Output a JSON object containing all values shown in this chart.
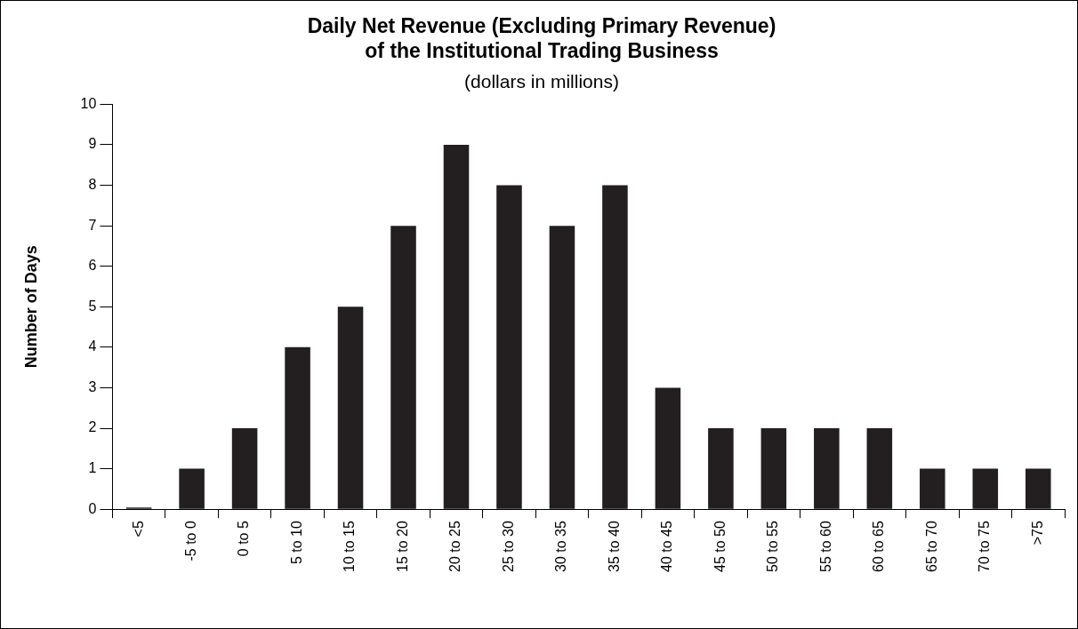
{
  "chart_data": {
    "type": "bar",
    "title": "Daily Net Revenue (Excluding Primary Revenue)\nof the Institutional Trading Business",
    "subtitle": "(dollars in millions)",
    "ylabel": "Number of Days",
    "categories": [
      "<5",
      "-5 to 0",
      "0 to 5",
      "5 to 10",
      "10 to 15",
      "15 to 20",
      "20 to 25",
      "25 to 30",
      "30 to 35",
      "35 to 40",
      "40 to 45",
      "45 to 50",
      "50 to 55",
      "55 to 60",
      "60 to 65",
      "65 to 70",
      "70 to 75",
      ">75"
    ],
    "values": [
      0,
      1,
      2,
      4,
      5,
      7,
      9,
      8,
      7,
      8,
      3,
      2,
      2,
      2,
      2,
      1,
      1,
      1
    ],
    "color": "#231f20",
    "ylim": [
      0,
      10
    ],
    "yticks": [
      0,
      1,
      2,
      3,
      4,
      5,
      6,
      7,
      8,
      9,
      10
    ],
    "grid": false,
    "legend": false
  }
}
